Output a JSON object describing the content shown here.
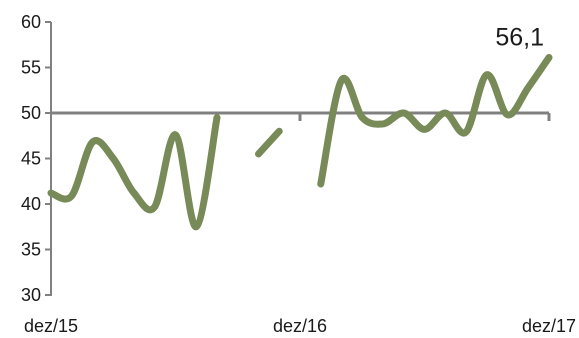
{
  "chart_data": {
    "type": "line",
    "title": "",
    "xlabel": "",
    "ylabel": "",
    "ylim": [
      30,
      60
    ],
    "y_ticks": [
      30,
      35,
      40,
      45,
      50,
      55,
      60
    ],
    "x_tick_labels": [
      "dez/15",
      "dez/16",
      "dez/17"
    ],
    "reference_line": 50,
    "grid": false,
    "colors": {
      "series": "#778a57",
      "axis": "#808080",
      "reference": "#808080"
    },
    "series": [
      {
        "segments": [
          [
            [
              0,
              41.2
            ],
            [
              1,
              40.9
            ],
            [
              2,
              46.8
            ],
            [
              3,
              45.0
            ],
            [
              4,
              41.2
            ],
            [
              5,
              39.7
            ],
            [
              6,
              47.6
            ],
            [
              7,
              37.5
            ],
            [
              8,
              49.5
            ]
          ],
          [
            [
              10,
              45.5
            ],
            [
              11,
              48.0
            ]
          ],
          [
            [
              13,
              42.2
            ],
            [
              14,
              53.6
            ],
            [
              15,
              49.5
            ],
            [
              16,
              48.8
            ],
            [
              17,
              50.0
            ],
            [
              18,
              48.2
            ],
            [
              19,
              50.0
            ],
            [
              20,
              47.9
            ],
            [
              21,
              54.2
            ],
            [
              22,
              49.8
            ],
            [
              23,
              52.8
            ],
            [
              24,
              56.1
            ]
          ]
        ]
      }
    ],
    "annotations": [
      {
        "index": 24,
        "value": 56.1,
        "text": "56,1"
      }
    ]
  }
}
